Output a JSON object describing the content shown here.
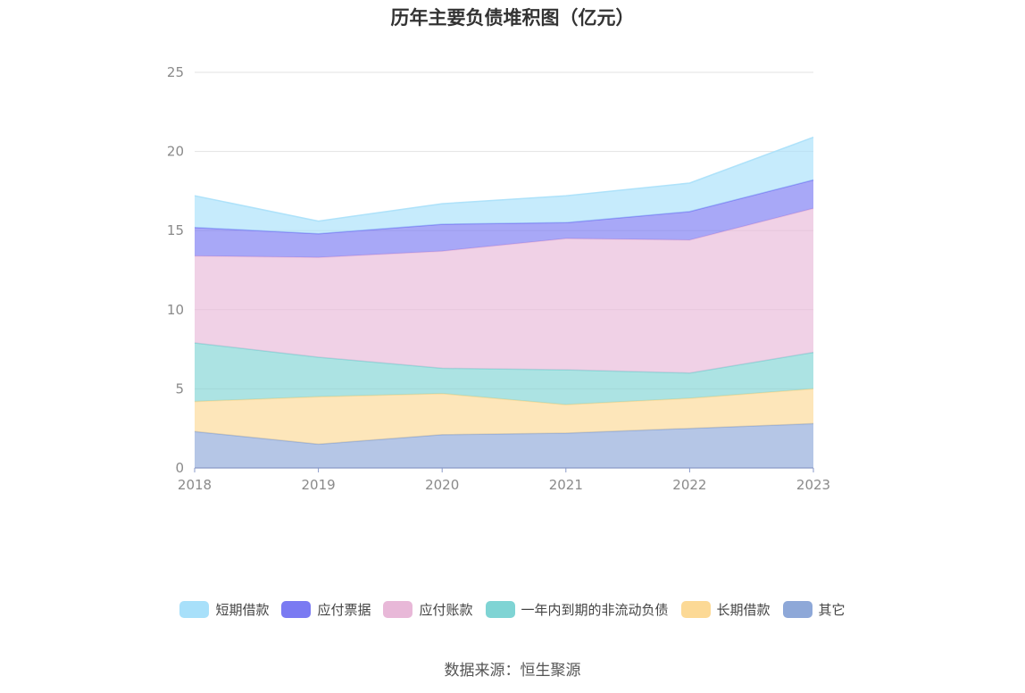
{
  "chart_data": {
    "type": "area",
    "stacked": true,
    "title": "历年主要负债堆积图（亿元）",
    "categories": [
      "2018",
      "2019",
      "2020",
      "2021",
      "2022",
      "2023"
    ],
    "ylim": [
      0,
      25
    ],
    "yticks": [
      0,
      5,
      10,
      15,
      20,
      25
    ],
    "grid": true,
    "legend_position": "bottom",
    "series": [
      {
        "name": "其它",
        "color": "#8ea8d8",
        "values": [
          2.3,
          1.5,
          2.1,
          2.2,
          2.5,
          2.8
        ]
      },
      {
        "name": "长期借款",
        "color": "#fcd995",
        "values": [
          1.9,
          3.0,
          2.6,
          1.8,
          1.9,
          2.2
        ]
      },
      {
        "name": "一年内到期的非流动负债",
        "color": "#7fd4d4",
        "values": [
          3.7,
          2.5,
          1.6,
          2.2,
          1.6,
          2.3
        ]
      },
      {
        "name": "应付账款",
        "color": "#e8b8d8",
        "values": [
          5.5,
          6.3,
          7.4,
          8.3,
          8.4,
          9.1
        ]
      },
      {
        "name": "应付票据",
        "color": "#7a7af2",
        "values": [
          1.8,
          1.5,
          1.7,
          1.0,
          1.8,
          1.8
        ]
      },
      {
        "name": "短期借款",
        "color": "#a8e0fa",
        "values": [
          2.0,
          0.8,
          1.3,
          1.7,
          1.8,
          2.7
        ]
      }
    ]
  },
  "legend": [
    {
      "name": "短期借款",
      "color": "#a8e0fa"
    },
    {
      "name": "应付票据",
      "color": "#7a7af2"
    },
    {
      "name": "应付账款",
      "color": "#e8b8d8"
    },
    {
      "name": "一年内到期的非流动负债",
      "color": "#7fd4d4"
    },
    {
      "name": "长期借款",
      "color": "#fcd995"
    },
    {
      "name": "其它",
      "color": "#8ea8d8"
    }
  ],
  "source": "数据来源：恒生聚源"
}
